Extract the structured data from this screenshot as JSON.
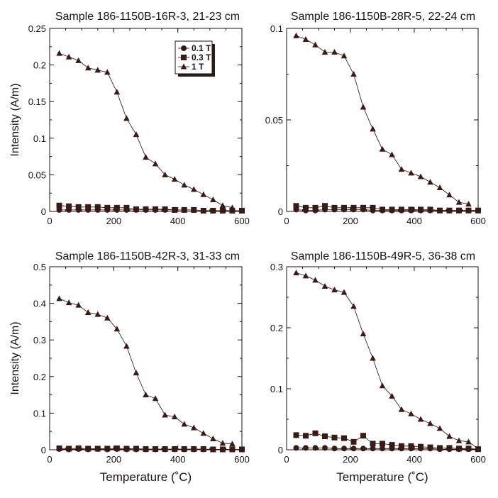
{
  "figure": {
    "colors": {
      "ink": "#2b1a16",
      "marker": "#3a1a14",
      "line": "#1a1210",
      "frame": "#1a1210"
    },
    "legend": {
      "entries": [
        {
          "label": "0.1 T",
          "marker": "circle"
        },
        {
          "label": "0.3 T",
          "marker": "square"
        },
        {
          "label": "1 T",
          "marker": "triangle"
        }
      ]
    }
  },
  "chart_data": [
    {
      "type": "line",
      "title": "Sample 186-1150B-16R-3, 21-23 cm",
      "xlabel": "",
      "ylabel": "Intensity (A/m)",
      "xlim": [
        0,
        600
      ],
      "ylim": [
        0,
        0.25
      ],
      "xticks": [
        "0",
        "200",
        "400",
        "600"
      ],
      "yticks": [
        "0",
        "0.05",
        "0.1",
        "0.15",
        "0.2",
        "0.25"
      ],
      "ytick_values": [
        0,
        0.05,
        0.1,
        0.15,
        0.2,
        0.25
      ],
      "legend": true,
      "series": [
        {
          "name": "0.1 T",
          "marker": "circle",
          "x": [
            30,
            60,
            90,
            120,
            150,
            180,
            210,
            240,
            270,
            300,
            330,
            360,
            390,
            420,
            450,
            480,
            510,
            540,
            570,
            600
          ],
          "y": [
            0.002,
            0.002,
            0.002,
            0.002,
            0.002,
            0.002,
            0.002,
            0.002,
            0.002,
            0.002,
            0.002,
            0.002,
            0.002,
            0.002,
            0.002,
            0.001,
            0.001,
            0.001,
            0.001,
            0.001
          ]
        },
        {
          "name": "0.3 T",
          "marker": "square",
          "x": [
            30,
            60,
            90,
            120,
            150,
            180,
            210,
            240,
            270,
            300,
            330,
            360,
            390,
            420,
            450,
            480,
            510,
            540,
            570,
            600
          ],
          "y": [
            0.008,
            0.007,
            0.006,
            0.006,
            0.006,
            0.005,
            0.005,
            0.005,
            0.003,
            0.003,
            0.003,
            0.003,
            0.002,
            0.002,
            0.002,
            0.001,
            0.001,
            0.001,
            0.001,
            0.001
          ]
        },
        {
          "name": "1 T",
          "marker": "triangle",
          "x": [
            30,
            60,
            90,
            120,
            150,
            180,
            210,
            240,
            270,
            300,
            330,
            360,
            390,
            420,
            450,
            480,
            510,
            540,
            570
          ],
          "y": [
            0.216,
            0.211,
            0.206,
            0.196,
            0.193,
            0.19,
            0.163,
            0.127,
            0.105,
            0.074,
            0.065,
            0.05,
            0.044,
            0.036,
            0.03,
            0.023,
            0.016,
            0.008,
            0.005
          ]
        }
      ]
    },
    {
      "type": "line",
      "title": "Sample 186-1150B-28R-5, 22-24 cm",
      "xlabel": "",
      "ylabel": "",
      "xlim": [
        0,
        600
      ],
      "ylim": [
        0,
        0.1
      ],
      "xticks": [
        "0",
        "200",
        "400",
        "600"
      ],
      "yticks": [
        "0",
        "0.05",
        "0.1"
      ],
      "ytick_values": [
        0,
        0.05,
        0.1
      ],
      "legend": false,
      "series": [
        {
          "name": "0.1 T",
          "marker": "circle",
          "x": [
            30,
            60,
            90,
            120,
            150,
            180,
            210,
            240,
            270,
            300,
            330,
            360,
            390,
            420,
            450,
            480,
            510,
            540,
            570,
            600
          ],
          "y": [
            0.001,
            0.0005,
            0.0005,
            0.001,
            0.001,
            0.001,
            0.001,
            0.001,
            0.0005,
            0.0005,
            0.0005,
            0.0005,
            0.0005,
            0.0005,
            0.0005,
            0.0005,
            0.0005,
            0.0005,
            0.0005,
            0.0005
          ]
        },
        {
          "name": "0.3 T",
          "marker": "square",
          "x": [
            30,
            60,
            90,
            120,
            150,
            180,
            210,
            240,
            270,
            300,
            330,
            360,
            390,
            420,
            450,
            480,
            510,
            540,
            570,
            600
          ],
          "y": [
            0.003,
            0.002,
            0.002,
            0.003,
            0.002,
            0.002,
            0.002,
            0.002,
            0.002,
            0.001,
            0.001,
            0.001,
            0.001,
            0.001,
            0.001,
            0.0005,
            0.0005,
            0.0005,
            0.0005,
            0.0005
          ]
        },
        {
          "name": "1 T",
          "marker": "triangle",
          "x": [
            30,
            60,
            90,
            120,
            150,
            180,
            210,
            240,
            270,
            300,
            330,
            360,
            390,
            420,
            450,
            480,
            510,
            540,
            570
          ],
          "y": [
            0.096,
            0.094,
            0.091,
            0.087,
            0.087,
            0.085,
            0.075,
            0.057,
            0.045,
            0.034,
            0.031,
            0.023,
            0.021,
            0.019,
            0.016,
            0.013,
            0.009,
            0.005,
            0.004
          ]
        }
      ]
    },
    {
      "type": "line",
      "title": "Sample 186-1150B-42R-3, 31-33 cm",
      "xlabel": "Temperature (˚C)",
      "ylabel": "Intensity (A/m)",
      "xlim": [
        0,
        600
      ],
      "ylim": [
        0,
        0.5
      ],
      "xticks": [
        "0",
        "200",
        "400",
        "600"
      ],
      "yticks": [
        "0",
        "0.1",
        "0.2",
        "0.3",
        "0.4",
        "0.5"
      ],
      "ytick_values": [
        0,
        0.1,
        0.2,
        0.3,
        0.4,
        0.5
      ],
      "legend": false,
      "series": [
        {
          "name": "0.1 T",
          "marker": "circle",
          "x": [
            30,
            60,
            90,
            120,
            150,
            180,
            210,
            240,
            270,
            300,
            330,
            360,
            390,
            420,
            450,
            480,
            510,
            540,
            570,
            600
          ],
          "y": [
            0.002,
            0.001,
            0.002,
            0.001,
            0.002,
            0.001,
            0.002,
            0.001,
            0.001,
            0.001,
            0.001,
            0.001,
            0.001,
            0.001,
            0.001,
            0.001,
            0.001,
            0.001,
            0.001,
            0.001
          ]
        },
        {
          "name": "0.3 T",
          "marker": "square",
          "x": [
            30,
            60,
            90,
            120,
            150,
            180,
            210,
            240,
            270,
            300,
            330,
            360,
            390,
            420,
            450,
            480,
            510,
            540,
            570,
            600
          ],
          "y": [
            0.004,
            0.003,
            0.004,
            0.003,
            0.003,
            0.003,
            0.004,
            0.003,
            0.003,
            0.002,
            0.002,
            0.002,
            0.002,
            0.002,
            0.002,
            0.002,
            0.001,
            0.001,
            0.001,
            0.001
          ]
        },
        {
          "name": "1 T",
          "marker": "triangle",
          "x": [
            30,
            60,
            90,
            120,
            150,
            180,
            210,
            240,
            270,
            300,
            330,
            360,
            390,
            420,
            450,
            480,
            510,
            540,
            570
          ],
          "y": [
            0.413,
            0.402,
            0.395,
            0.375,
            0.37,
            0.36,
            0.33,
            0.283,
            0.21,
            0.15,
            0.14,
            0.095,
            0.09,
            0.07,
            0.06,
            0.045,
            0.03,
            0.018,
            0.016
          ]
        }
      ]
    },
    {
      "type": "line",
      "title": "Sample 186-1150B-49R-5, 36-38 cm",
      "xlabel": "Temperature (˚C)",
      "ylabel": "",
      "xlim": [
        0,
        600
      ],
      "ylim": [
        0,
        0.3
      ],
      "xticks": [
        "0",
        "200",
        "400",
        "600"
      ],
      "yticks": [
        "0",
        "0.1",
        "0.2",
        "0.3"
      ],
      "ytick_values": [
        0,
        0.1,
        0.2,
        0.3
      ],
      "legend": false,
      "series": [
        {
          "name": "0.1 T",
          "marker": "circle",
          "x": [
            30,
            60,
            90,
            120,
            150,
            180,
            210,
            240,
            270,
            300,
            330,
            360,
            390,
            420,
            450,
            480,
            510,
            540,
            570,
            600
          ],
          "y": [
            0.003,
            0.003,
            0.003,
            0.003,
            0.002,
            0.002,
            0.002,
            0.002,
            0.002,
            0.002,
            0.002,
            0.002,
            0.002,
            0.002,
            0.002,
            0.001,
            0.001,
            0.001,
            0.001,
            0.001
          ]
        },
        {
          "name": "0.3 T",
          "marker": "square",
          "x": [
            30,
            60,
            90,
            120,
            150,
            180,
            210,
            240,
            270,
            300,
            330,
            360,
            390,
            420,
            450,
            480,
            510,
            540,
            570,
            600
          ],
          "y": [
            0.024,
            0.023,
            0.027,
            0.022,
            0.02,
            0.019,
            0.013,
            0.023,
            0.01,
            0.01,
            0.008,
            0.006,
            0.006,
            0.005,
            0.004,
            0.003,
            0.003,
            0.002,
            0.002,
            0.001
          ]
        },
        {
          "name": "1 T",
          "marker": "triangle",
          "x": [
            30,
            60,
            90,
            120,
            150,
            180,
            210,
            240,
            270,
            300,
            330,
            360,
            390,
            420,
            450,
            480,
            510,
            540,
            570,
            600
          ],
          "y": [
            0.29,
            0.285,
            0.278,
            0.268,
            0.262,
            0.258,
            0.235,
            0.19,
            0.15,
            0.105,
            0.088,
            0.066,
            0.059,
            0.05,
            0.043,
            0.035,
            0.022,
            0.015,
            0.013,
            0.002
          ]
        }
      ]
    }
  ]
}
